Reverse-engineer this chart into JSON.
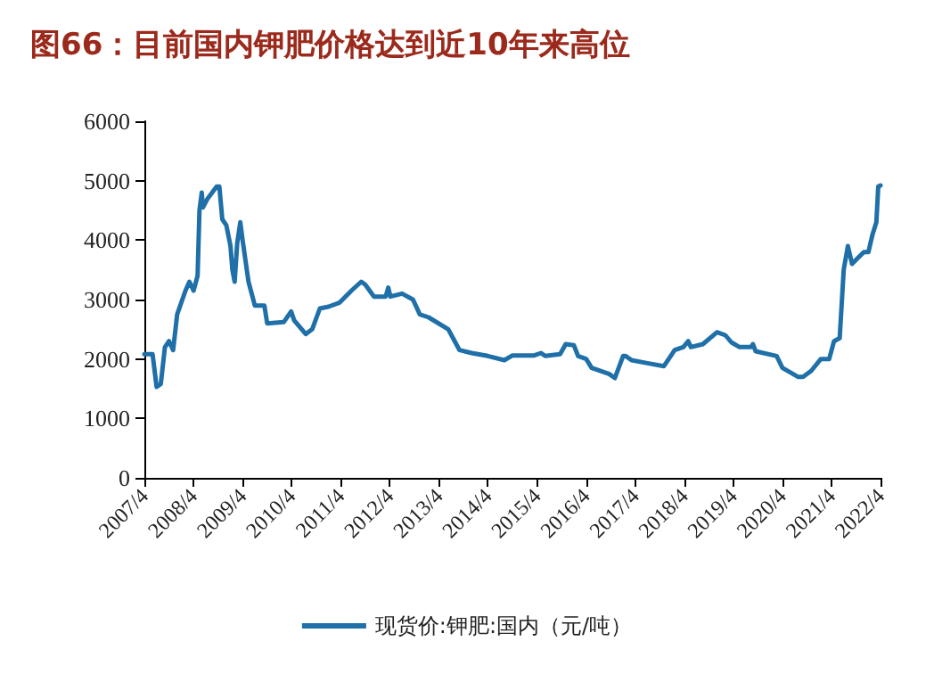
{
  "chart_data": {
    "type": "line",
    "title": "图66：目前国内钾肥价格达到近10年来高位",
    "xlim": [
      "2007-04",
      "2022-04"
    ],
    "xticks": [
      {
        "value": "2007-04",
        "label": "2007/4"
      },
      {
        "value": "2008-04",
        "label": "2008/4"
      },
      {
        "value": "2009-04",
        "label": "2009/4"
      },
      {
        "value": "2010-04",
        "label": "2010/4"
      },
      {
        "value": "2011-04",
        "label": "2011/4"
      },
      {
        "value": "2012-04",
        "label": "2012/4"
      },
      {
        "value": "2013-04",
        "label": "2013/4"
      },
      {
        "value": "2014-04",
        "label": "2014/4"
      },
      {
        "value": "2015-04",
        "label": "2015/4"
      },
      {
        "value": "2016-04",
        "label": "2016/4"
      },
      {
        "value": "2017-04",
        "label": "2017/4"
      },
      {
        "value": "2018-04",
        "label": "2018/4"
      },
      {
        "value": "2019-04",
        "label": "2019/4"
      },
      {
        "value": "2020-04",
        "label": "2020/4"
      },
      {
        "value": "2021-04",
        "label": "2021/4"
      },
      {
        "value": "2022-04",
        "label": "2022/4"
      }
    ],
    "ylim": [
      0,
      6000
    ],
    "yticks": [
      0,
      1000,
      2000,
      3000,
      4000,
      5000,
      6000
    ],
    "grid": false,
    "legend": "bottom",
    "marker": "none",
    "line_style": "solid",
    "series": [
      {
        "name": "现货价:钾肥:国内（元/吨）",
        "color": "#1f6fa8",
        "x": [
          "2007-04",
          "2007-06",
          "2007-07",
          "2007-08",
          "2007-09",
          "2007-10",
          "2007-11",
          "2007-12",
          "2008-02",
          "2008-03",
          "2008-04",
          "2008-05",
          "2008-05-15",
          "2008-06-01",
          "2008-06-10",
          "2008-07-15",
          "2008-09-20",
          "2008-10-10",
          "2008-11-01",
          "2008-12-01",
          "2009-01-01",
          "2009-01-15",
          "2009-02-01",
          "2009-02-20",
          "2009-03-15",
          "2009-04-01",
          "2009-05-15",
          "2009-07-01",
          "2009-09-10",
          "2009-10-01",
          "2010-02-01",
          "2010-03-28",
          "2010-04-20",
          "2010-07-15",
          "2010-09-01",
          "2010-10-28",
          "2011-01-01",
          "2011-03-25",
          "2011-06-20",
          "2011-09-01",
          "2011-10-01",
          "2011-12-05",
          "2012-03-01",
          "2012-03-20",
          "2012-04-05",
          "2012-07-01",
          "2012-09-20",
          "2012-11-10",
          "2013-01-15",
          "2013-06-10",
          "2013-09-01",
          "2013-12-01",
          "2014-04-01",
          "2014-08-01",
          "2014-10-01",
          "2015-03-12",
          "2015-05-01",
          "2015-06-01",
          "2015-09-20",
          "2015-11-01",
          "2016-01-01",
          "2016-02-01",
          "2016-04-01",
          "2016-05-12",
          "2016-09-18",
          "2016-11-01",
          "2017-01-01",
          "2017-01-20",
          "2017-03-05",
          "2017-07-01",
          "2017-11-01",
          "2018-01-20",
          "2018-03-25",
          "2018-05-01",
          "2018-05-20",
          "2018-08-18",
          "2018-12-01",
          "2019-02-01",
          "2019-03-18",
          "2019-05-18",
          "2019-08-12",
          "2019-08-25",
          "2019-09-15",
          "2020-02-18",
          "2020-04-01",
          "2020-07-25",
          "2020-09-01",
          "2020-11-01",
          "2021-01-12",
          "2021-03-15",
          "2021-04-20",
          "2021-06-01",
          "2021-07-01",
          "2021-08-01",
          "2021-09-01",
          "2021-10-15",
          "2021-11-28",
          "2022-01-01",
          "2022-02-01",
          "2022-03-01",
          "2022-03-15",
          "2022-04-01"
        ],
        "values": [
          2080,
          2080,
          1530,
          1580,
          2200,
          2300,
          2150,
          2750,
          3150,
          3300,
          3150,
          3400,
          4500,
          4800,
          4550,
          4700,
          4900,
          4900,
          4350,
          4250,
          3900,
          3500,
          3300,
          3950,
          4300,
          4000,
          3300,
          2900,
          2900,
          2600,
          2620,
          2800,
          2650,
          2420,
          2500,
          2850,
          2880,
          2950,
          3150,
          3300,
          3250,
          3050,
          3050,
          3200,
          3050,
          3100,
          3000,
          2750,
          2700,
          2500,
          2150,
          2100,
          2050,
          1980,
          2060,
          2060,
          2100,
          2050,
          2080,
          2250,
          2230,
          2050,
          2000,
          1850,
          1750,
          1680,
          2050,
          2050,
          1980,
          1930,
          1880,
          2150,
          2200,
          2300,
          2200,
          2250,
          2450,
          2400,
          2280,
          2200,
          2200,
          2250,
          2130,
          2050,
          1850,
          1700,
          1700,
          1800,
          2000,
          2000,
          2300,
          2350,
          3500,
          3900,
          3600,
          3700,
          3800,
          3800,
          4100,
          4300,
          4900,
          4920
        ]
      }
    ]
  }
}
